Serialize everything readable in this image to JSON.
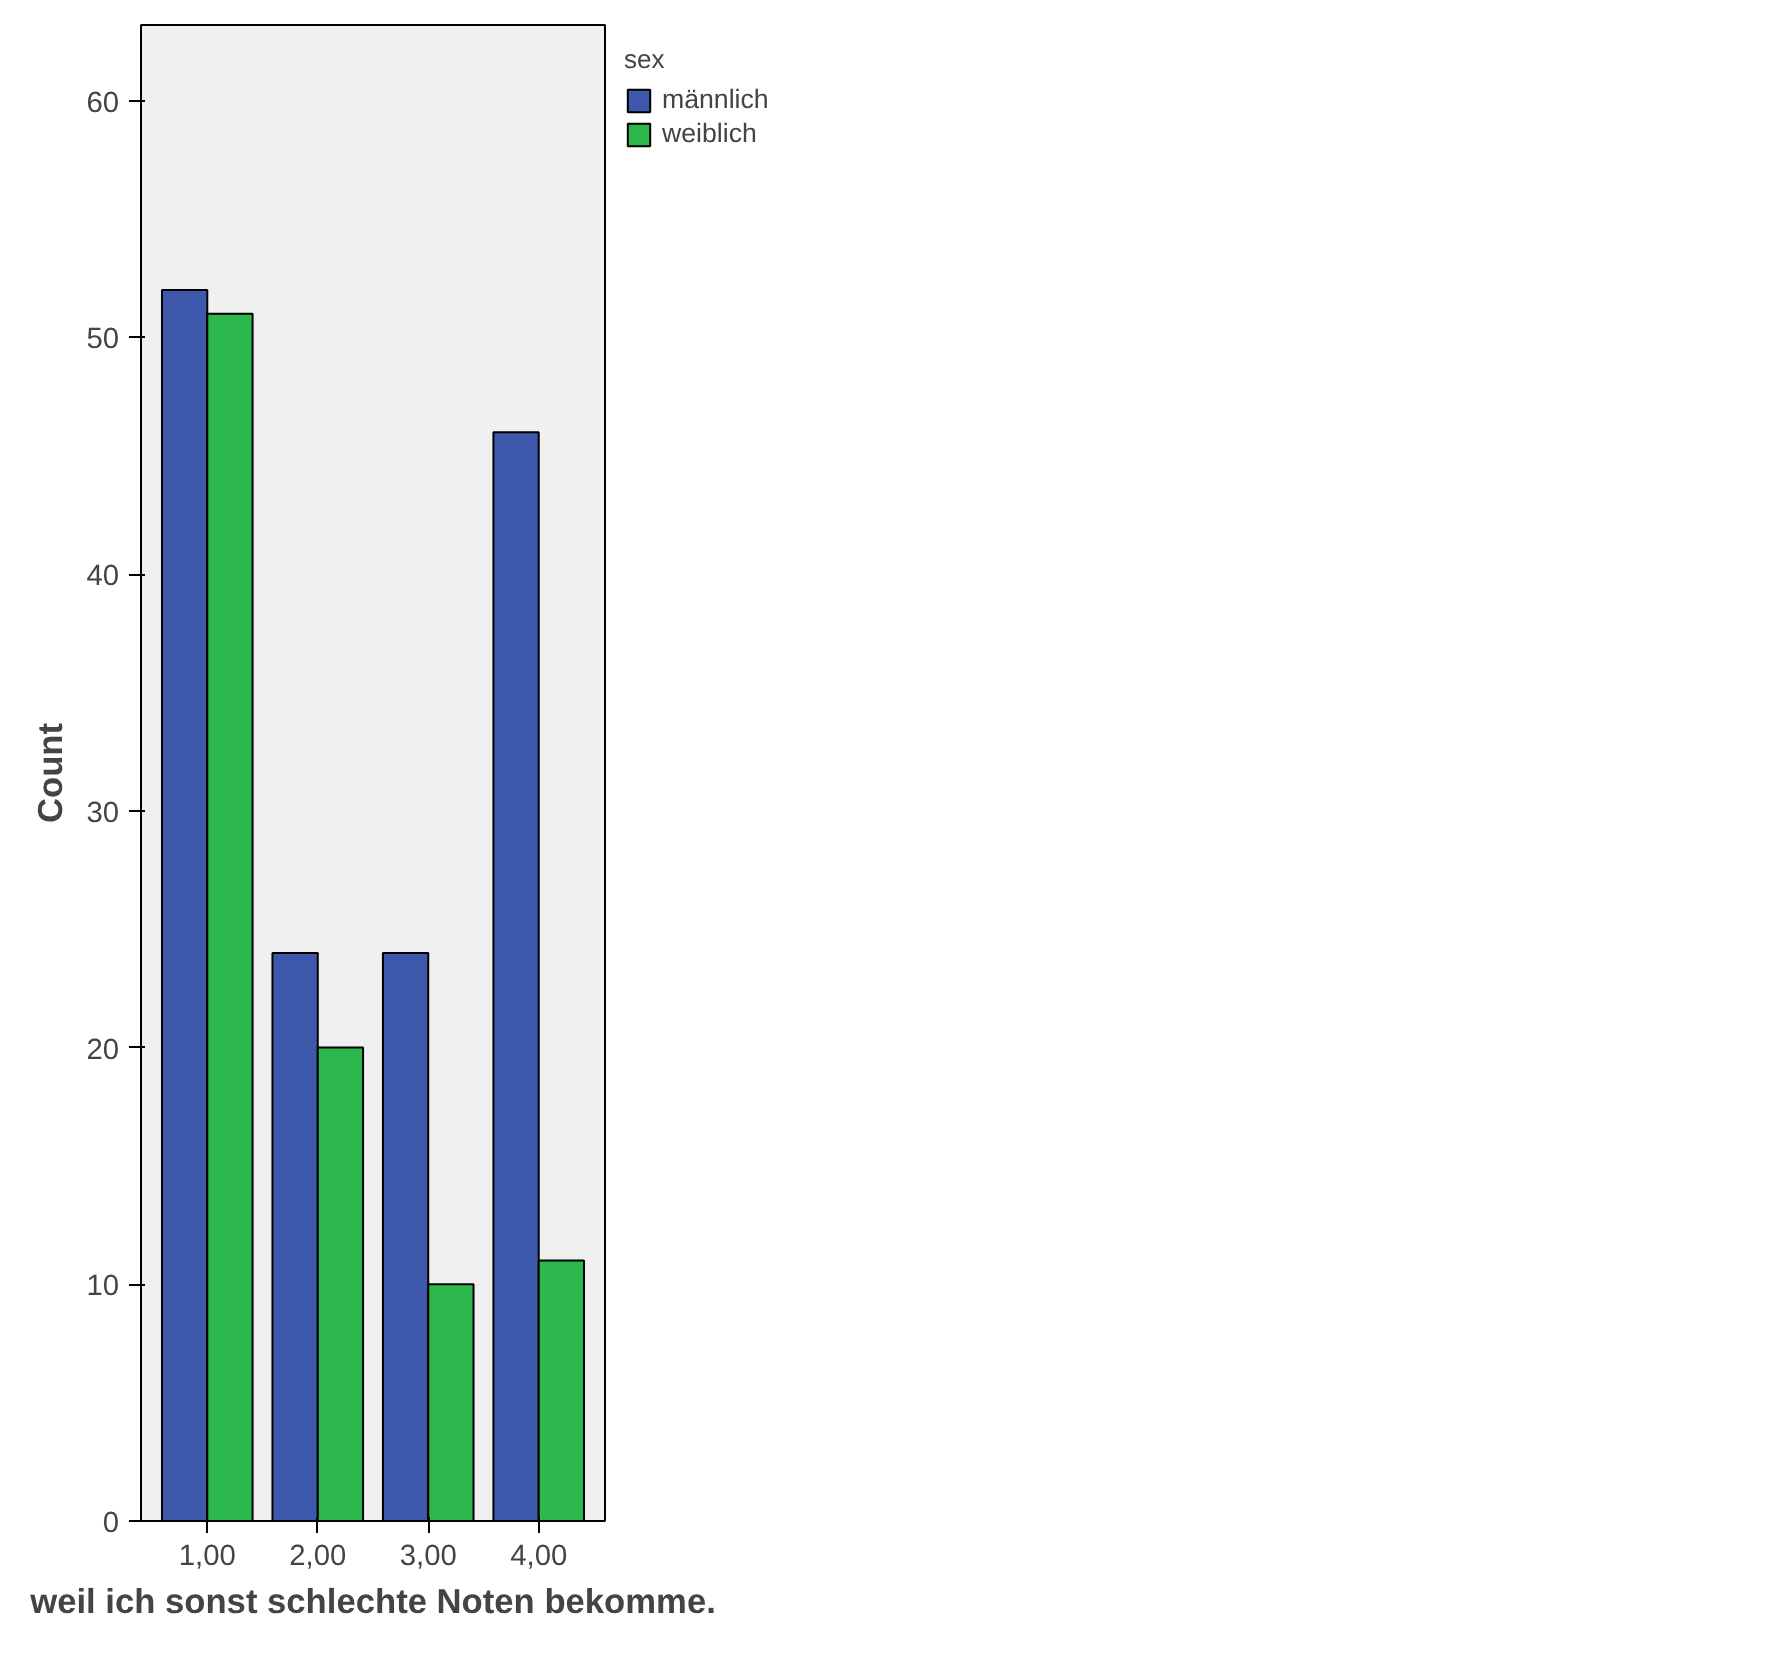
{
  "chart_data": {
    "type": "bar",
    "xlabel": "weil ich sonst schlechte Noten bekomme.",
    "ylabel": "Count",
    "legend_title": "sex",
    "categories": [
      "1,00",
      "2,00",
      "3,00",
      "4,00"
    ],
    "series": [
      {
        "name": "männlich",
        "color": "#3e58ac",
        "values": [
          52,
          24,
          24,
          46
        ]
      },
      {
        "name": "weiblich",
        "color": "#2db84d",
        "values": [
          51,
          20,
          10,
          11
        ]
      }
    ],
    "ylim": [
      0,
      63.2
    ],
    "yticks": [
      0,
      10,
      20,
      30,
      40,
      50,
      60
    ],
    "grid": false,
    "legend": "top right"
  }
}
